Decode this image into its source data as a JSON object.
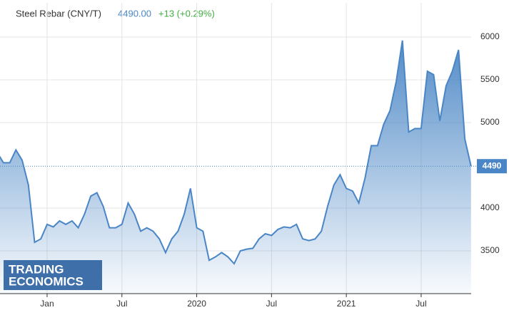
{
  "chart_data": {
    "type": "area",
    "title": "Steel Rebar (CNY/T)",
    "price": "4490.00",
    "change": "+13 (+0.29%)",
    "watermark": [
      "TRADING",
      "ECONOMICS"
    ],
    "color": "#4a86c5",
    "change_color": "#3fae3f",
    "grid": true,
    "categories": [
      null,
      null,
      null,
      null,
      null,
      null,
      null,
      null,
      "Jan",
      null,
      null,
      null,
      null,
      null,
      null,
      null,
      null,
      null,
      null,
      null,
      "Jul",
      null,
      null,
      null,
      null,
      null,
      null,
      null,
      null,
      null,
      null,
      null,
      "2020",
      null,
      null,
      null,
      null,
      null,
      null,
      null,
      null,
      null,
      null,
      null,
      "Jul",
      null,
      null,
      null,
      null,
      null,
      null,
      null,
      null,
      null,
      null,
      null,
      "2021",
      null,
      null,
      null,
      null,
      null,
      null,
      null,
      null,
      null,
      null,
      null,
      "Jul",
      null,
      null,
      null,
      null,
      null,
      null,
      null,
      null
    ],
    "values": [
      4650,
      4530,
      4530,
      4680,
      4560,
      4270,
      3600,
      3640,
      3810,
      3780,
      3850,
      3810,
      3850,
      3770,
      3930,
      4140,
      4180,
      4020,
      3770,
      3770,
      3810,
      4060,
      3930,
      3730,
      3770,
      3730,
      3640,
      3480,
      3640,
      3730,
      3930,
      4230,
      3770,
      3730,
      3390,
      3430,
      3480,
      3430,
      3350,
      3500,
      3520,
      3530,
      3640,
      3700,
      3680,
      3750,
      3780,
      3770,
      3810,
      3640,
      3620,
      3640,
      3730,
      4020,
      4270,
      4390,
      4230,
      4200,
      4060,
      4350,
      4730,
      4730,
      4980,
      5140,
      5480,
      5960,
      4890,
      4930,
      4930,
      5600,
      5560,
      5020,
      5430,
      5600,
      5850,
      4810,
      4490
    ],
    "ylim": [
      3000,
      6400
    ],
    "yticks": [
      3500,
      4000,
      5000,
      5500,
      6000
    ]
  }
}
